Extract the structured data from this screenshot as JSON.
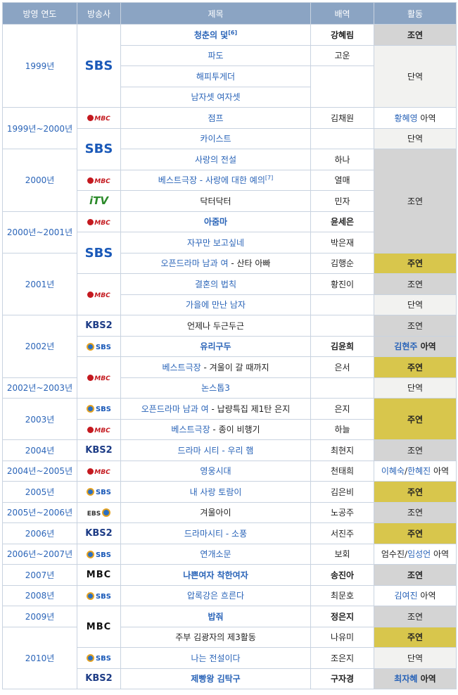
{
  "headers": {
    "year": "방영 연도",
    "broadcaster": "방송사",
    "title": "제목",
    "role": "배역",
    "activity": "활동"
  },
  "years": {
    "y1": "1999년",
    "y2": "1999년~2000년",
    "y3": "2000년",
    "y4": "2000년~2001년",
    "y5": "2001년",
    "y6": "2002년",
    "y7": "2002년~2003년",
    "y8": "2003년",
    "y9": "2004년",
    "y10": "2004년~2005년",
    "y11": "2005년",
    "y12": "2005년~2006년",
    "y13": "2006년",
    "y14": "2006년~2007년",
    "y15": "2007년",
    "y16": "2008년",
    "y17": "2009년",
    "y18": "2010년"
  },
  "logos": {
    "sbs": "SBS",
    "mbc_old": "MBC",
    "mbc_new": "MBC",
    "kbs2": "KBS2",
    "itv": "iTV",
    "ebs": "EBS"
  },
  "rows": [
    {
      "title": "청춘의 덫",
      "sup": "[6]",
      "role": "강혜림",
      "activity": "조연"
    },
    {
      "title": "파도",
      "role": "고운",
      "activity": "단역"
    },
    {
      "title": "해피투게더"
    },
    {
      "title": "남자셋 여자셋"
    },
    {
      "title": "점프",
      "role": "김채원",
      "activity_link": "황혜영",
      "activity_suffix": " 아역"
    },
    {
      "title": "카이스트",
      "activity": "단역"
    },
    {
      "title": "사랑의 전설",
      "role": "하나",
      "activity": "조연"
    },
    {
      "title_link": "베스트극장",
      "title_rest": " - 사랑에 대한 예의",
      "sup": "[7]",
      "role": "열매"
    },
    {
      "title": "닥터닥터",
      "role": "민자"
    },
    {
      "title": "아줌마",
      "role": "윤세은"
    },
    {
      "title": "자꾸만 보고싶네",
      "role": "박은재"
    },
    {
      "title_link": "오픈드라마 남과 여",
      "title_rest": " - 산타 아빠",
      "role": "김행순",
      "activity": "주연"
    },
    {
      "title": "결혼의 법칙",
      "role": "황진이",
      "activity": "조연"
    },
    {
      "title": "가을에 만난 남자",
      "activity": "단역"
    },
    {
      "title": "언제나 두근두근",
      "activity": "조연"
    },
    {
      "title": "유리구두",
      "role": "김윤희",
      "activity_link": "김현주",
      "activity_suffix": " 아역"
    },
    {
      "title_link": "베스트극장",
      "title_rest": " - 겨울이 갈 때까지",
      "role": "은서",
      "activity": "주연"
    },
    {
      "title": "논스톱3",
      "activity": "단역"
    },
    {
      "title_link": "오픈드라마 남과 여",
      "title_rest": " - 납량특집 제1탄 은지",
      "role": "은지",
      "activity": "주연"
    },
    {
      "title_link": "베스트극장",
      "title_rest": " - 종이 비행기",
      "role": "하늘"
    },
    {
      "title": "드라마 시티 - 우리 햄",
      "role": "최현지",
      "activity": "조연"
    },
    {
      "title": "영웅시대",
      "role": "천태희",
      "activity_link": "이혜숙",
      "activity_sep": "/",
      "activity_link2": "한혜진",
      "activity_suffix": " 아역"
    },
    {
      "title": "내 사랑 토람이",
      "role": "김은비",
      "activity": "주연"
    },
    {
      "title": "겨울아이",
      "role": "노공주",
      "activity": "조연"
    },
    {
      "title": "드라마시티 - 소풍",
      "role": "서진주",
      "activity": "주연"
    },
    {
      "title": "연개소문",
      "role": "보회",
      "activity_plain": "엄수진",
      "activity_sep": "/",
      "activity_link2": "임성언",
      "activity_suffix": " 아역"
    },
    {
      "title": "나쁜여자 착한여자",
      "role": "송진아",
      "activity": "조연"
    },
    {
      "title": "압록강은 흐른다",
      "role": "최문호",
      "activity_link": "김여진",
      "activity_suffix": " 아역"
    },
    {
      "title": "밥줘",
      "role": "정은지",
      "activity": "조연"
    },
    {
      "title": "주부 김광자의 제3활동",
      "role": "나유미",
      "activity": "주연"
    },
    {
      "title": "나는 전설이다",
      "role": "조은지",
      "activity": "단역"
    },
    {
      "title": "제빵왕 김탁구",
      "role": "구자경",
      "activity_link": "최자혜",
      "activity_suffix": " 아역"
    }
  ],
  "colors": {
    "header": "#8ba4c3",
    "link": "#2a64b8",
    "gray": "#d4d4d4",
    "gold": "#d8c64c",
    "light": "#f2f2f0"
  }
}
